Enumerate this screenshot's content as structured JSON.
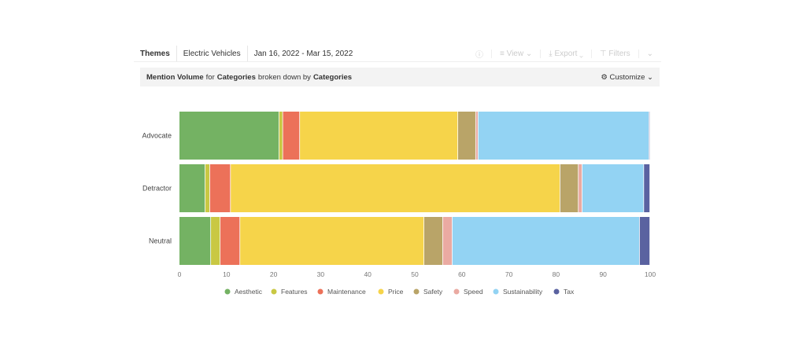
{
  "toolbar": {
    "themes": "Themes",
    "project": "Electric Vehicles",
    "date_range": "Jan 16, 2022 - Mar 15, 2022",
    "view": "View",
    "export": "Export",
    "filters": "Filters"
  },
  "header": {
    "metric": "Mention Volume",
    "for": "for",
    "cat1": "Categories",
    "broken": "broken down by",
    "cat2": "Categories",
    "customize": "Customize"
  },
  "chart_data": {
    "type": "bar",
    "orientation": "horizontal",
    "stacked": true,
    "categories": [
      "Advocate",
      "Detractor",
      "Neutral"
    ],
    "xlim": [
      0,
      100
    ],
    "xticks": [
      0,
      10,
      20,
      30,
      40,
      50,
      60,
      70,
      80,
      90,
      100
    ],
    "legend_position": "bottom",
    "series": [
      {
        "name": "Aesthetic",
        "color": "#74b263",
        "values": [
          21.2,
          5.5,
          6.7
        ]
      },
      {
        "name": "Features",
        "color": "#c9c843",
        "values": [
          0.8,
          1.0,
          2.0
        ]
      },
      {
        "name": "Maintenance",
        "color": "#ec7159",
        "values": [
          3.6,
          4.4,
          4.2
        ]
      },
      {
        "name": "Price",
        "color": "#f6d44a",
        "values": [
          33.6,
          70.0,
          39.1
        ]
      },
      {
        "name": "Safety",
        "color": "#b9a468",
        "values": [
          3.8,
          3.9,
          4.0
        ]
      },
      {
        "name": "Speed",
        "color": "#eaaaa2",
        "values": [
          0.5,
          0.8,
          2.0
        ]
      },
      {
        "name": "Sustainability",
        "color": "#93d3f3",
        "values": [
          36.3,
          13.1,
          39.8
        ]
      },
      {
        "name": "Tax",
        "color": "#5a62a0",
        "values": [
          0.2,
          1.3,
          2.2
        ]
      }
    ]
  }
}
